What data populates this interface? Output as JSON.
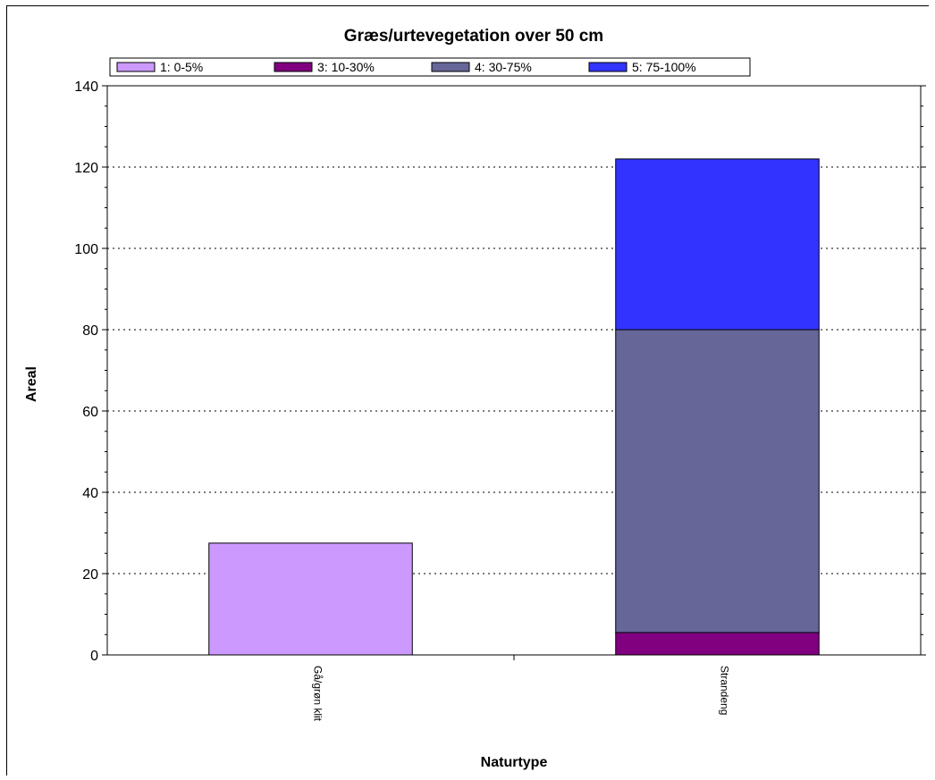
{
  "chart_data": {
    "type": "bar",
    "stacked": true,
    "title": "Græs/urtevegetation over 50 cm",
    "xlabel": "Naturtype",
    "ylabel": "Areal",
    "ylim": [
      0,
      140
    ],
    "yticks": [
      "0",
      "20",
      "40",
      "60",
      "80",
      "100",
      "120",
      "140"
    ],
    "categories": [
      "Gå/grøn klit",
      "Strandeng"
    ],
    "series": [
      {
        "name": "1: 0-5%",
        "color": "#cc99ff",
        "values": [
          27.5,
          0
        ]
      },
      {
        "name": "3: 10-30%",
        "color": "#800080",
        "values": [
          0,
          5.5
        ]
      },
      {
        "name": "4: 30-75%",
        "color": "#666699",
        "values": [
          0,
          74.5
        ]
      },
      {
        "name": "5: 75-100%",
        "color": "#3333ff",
        "values": [
          0,
          42
        ]
      }
    ],
    "grid": "horizontal-dotted",
    "legend": "top"
  }
}
